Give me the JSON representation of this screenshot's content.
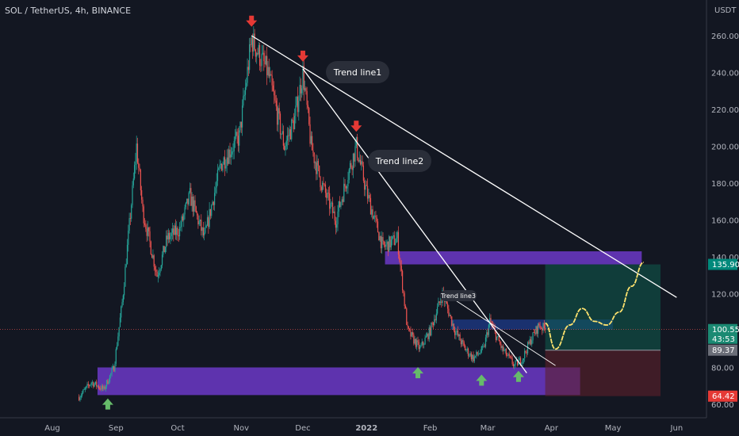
{
  "header": {
    "title": "SOL / TetherUS, 4h, BINANCE",
    "currency": "USDT"
  },
  "colors": {
    "background": "#131722",
    "up": "#26a69a",
    "down": "#ef5350",
    "zone": "#7b3fe4",
    "zone_blue": "#2962ff",
    "trend": "#ffffff",
    "projection": "#ffe36e",
    "profit_zone": "#0f5c4e",
    "loss_zone": "#5e1f2b"
  },
  "chart_data": {
    "type": "candlestick",
    "title": "SOL / TetherUS, 4h, BINANCE",
    "ylabel": "USDT",
    "y_axis_ticks": [
      "60.00",
      "80.00",
      "120.00",
      "140.00",
      "160.00",
      "180.00",
      "200.00",
      "220.00",
      "240.00",
      "260.00"
    ],
    "x_axis_ticks": [
      "Aug",
      "Sep",
      "Oct",
      "Nov",
      "Dec",
      "2022",
      "Feb",
      "Mar",
      "Apr",
      "May",
      "Jun"
    ],
    "ylim": [
      59,
      277
    ],
    "approx_path": [
      [
        "2021-08-14",
        64
      ],
      [
        "2021-08-20",
        72
      ],
      [
        "2021-08-26",
        68
      ],
      [
        "2021-08-31",
        80
      ],
      [
        "2021-09-04",
        115
      ],
      [
        "2021-09-09",
        175
      ],
      [
        "2021-09-11",
        200
      ],
      [
        "2021-09-14",
        165
      ],
      [
        "2021-09-21",
        130
      ],
      [
        "2021-09-26",
        150
      ],
      [
        "2021-10-02",
        155
      ],
      [
        "2021-10-07",
        173
      ],
      [
        "2021-10-14",
        150
      ],
      [
        "2021-10-22",
        190
      ],
      [
        "2021-10-31",
        205
      ],
      [
        "2021-11-06",
        258
      ],
      [
        "2021-11-14",
        240
      ],
      [
        "2021-11-22",
        200
      ],
      [
        "2021-11-27",
        215
      ],
      [
        "2021-12-01",
        240
      ],
      [
        "2021-12-05",
        200
      ],
      [
        "2021-12-10",
        180
      ],
      [
        "2021-12-17",
        160
      ],
      [
        "2021-12-23",
        185
      ],
      [
        "2021-12-27",
        200
      ],
      [
        "2022-01-01",
        175
      ],
      [
        "2022-01-09",
        145
      ],
      [
        "2022-01-16",
        150
      ],
      [
        "2022-01-21",
        100
      ],
      [
        "2022-01-27",
        90
      ],
      [
        "2022-02-01",
        100
      ],
      [
        "2022-02-07",
        120
      ],
      [
        "2022-02-13",
        100
      ],
      [
        "2022-02-18",
        90
      ],
      [
        "2022-02-22",
        85
      ],
      [
        "2022-02-27",
        90
      ],
      [
        "2022-03-02",
        105
      ],
      [
        "2022-03-08",
        90
      ],
      [
        "2022-03-14",
        81
      ],
      [
        "2022-03-18",
        85
      ],
      [
        "2022-03-22",
        95
      ],
      [
        "2022-03-26",
        103
      ],
      [
        "2022-03-29",
        100.55
      ]
    ],
    "trend_lines": [
      {
        "label": "Trend line1",
        "from": [
          "2021-11-06",
          260
        ],
        "to": [
          "2022-06-01",
          118
        ]
      },
      {
        "label": "Trend line2",
        "from": [
          "2021-12-01",
          242
        ],
        "to": [
          "2022-03-20",
          77
        ]
      },
      {
        "label": "Trend line3",
        "from": [
          "2022-02-07",
          121
        ],
        "to": [
          "2022-04-03",
          81
        ]
      }
    ],
    "zones": [
      {
        "color": "zone",
        "from": "2021-08-23",
        "to": "2022-04-15",
        "low": 65,
        "high": 80
      },
      {
        "color": "zone",
        "from": "2022-01-10",
        "to": "2022-05-15",
        "low": 135.9,
        "high": 143
      },
      {
        "color": "zone_blue",
        "from": "2022-02-11",
        "to": "2022-05-01",
        "low": 100.55,
        "high": 106
      }
    ],
    "position": {
      "entry": 89.37,
      "target": 135.9,
      "stop": 64.42,
      "from": "2022-03-29",
      "to": "2022-06-01"
    },
    "projection_path": [
      [
        "2022-03-29",
        104
      ],
      [
        "2022-04-03",
        90
      ],
      [
        "2022-04-10",
        103
      ],
      [
        "2022-04-16",
        112
      ],
      [
        "2022-04-22",
        105
      ],
      [
        "2022-04-28",
        103
      ],
      [
        "2022-05-04",
        110
      ],
      [
        "2022-05-10",
        124
      ],
      [
        "2022-05-16",
        137
      ]
    ],
    "price_labels": {
      "target": "135.90",
      "current": "100.55",
      "countdown": "43:53",
      "entry": "89.37",
      "stop": "64.42"
    },
    "arrows_down": [
      [
        "2021-11-06",
        267
      ],
      [
        "2021-12-01",
        248
      ],
      [
        "2021-12-27",
        210
      ]
    ],
    "arrows_up": [
      [
        "2021-08-28",
        61
      ],
      [
        "2022-01-26",
        78
      ],
      [
        "2022-02-26",
        74
      ],
      [
        "2022-03-16",
        76
      ]
    ]
  }
}
